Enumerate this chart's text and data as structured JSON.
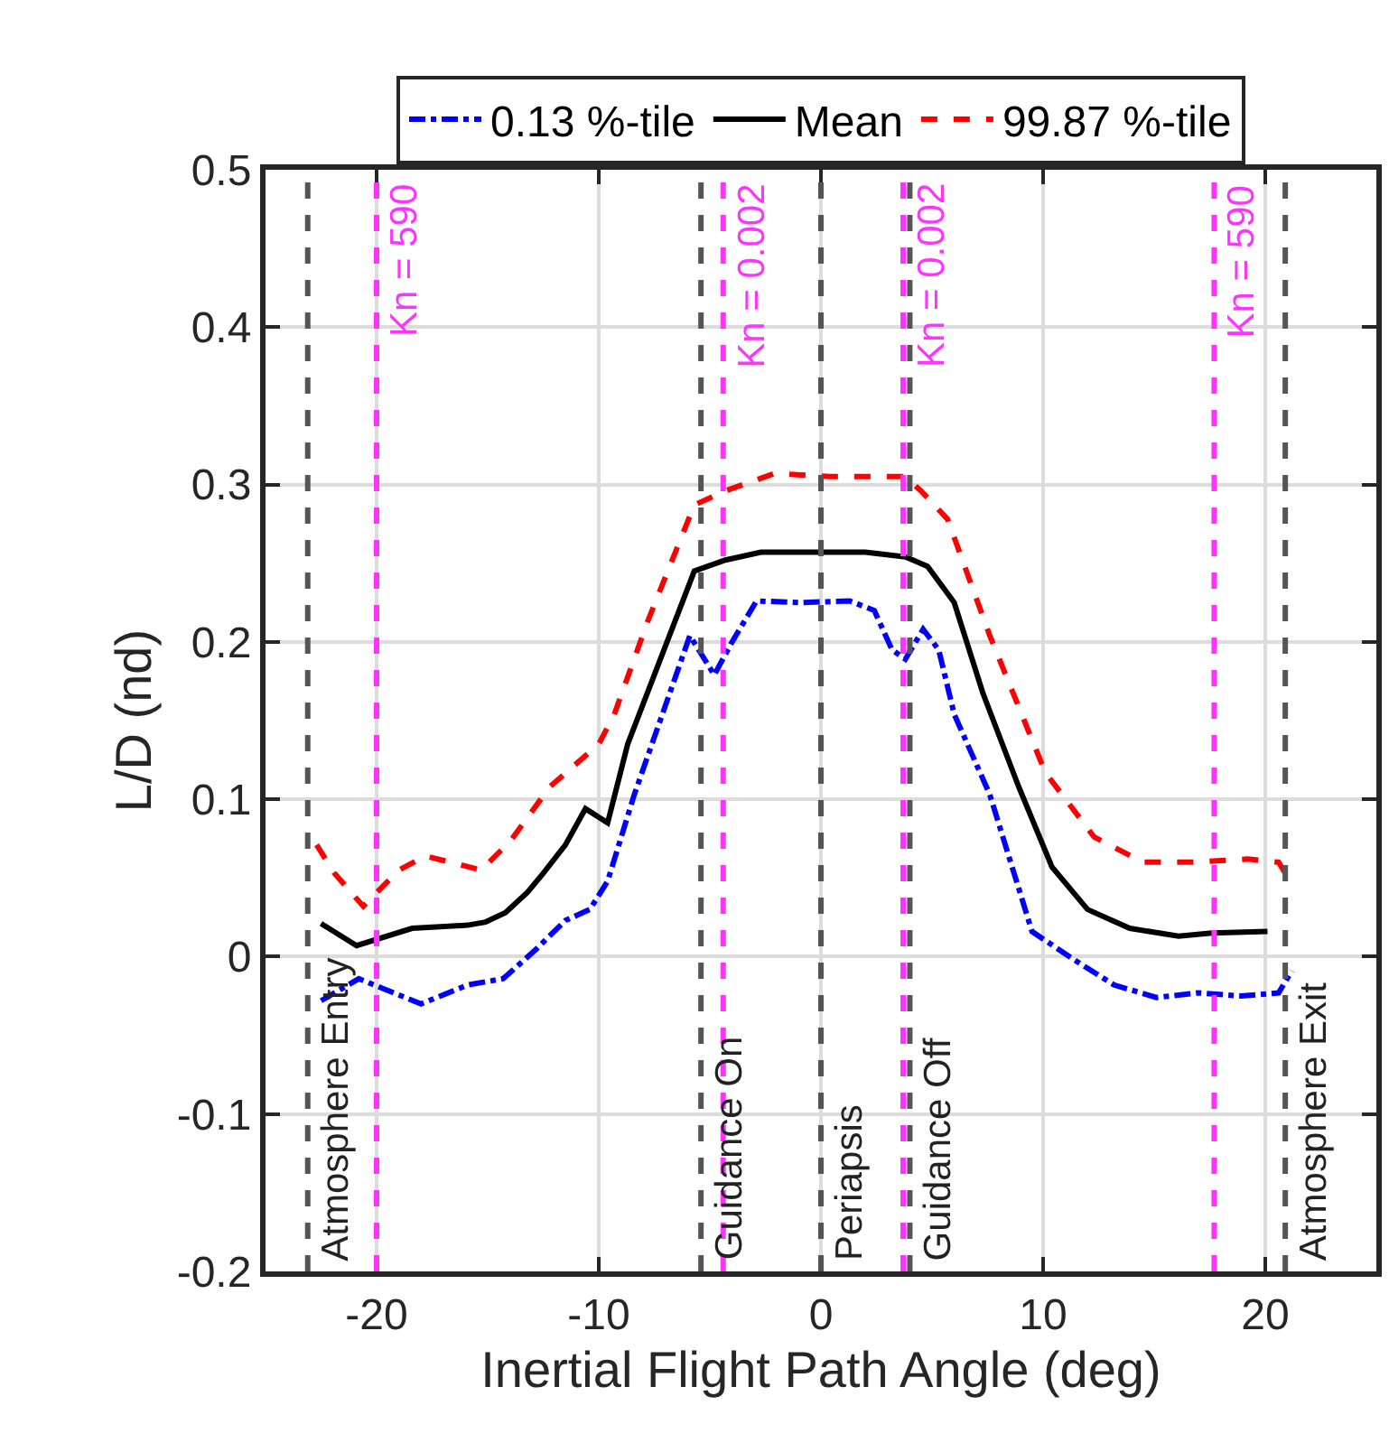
{
  "chart_data": {
    "type": "line",
    "xlabel": "Inertial Flight Path Angle (deg)",
    "ylabel": "L/D (nd)",
    "xlim": [
      -25,
      25
    ],
    "xticks": [
      -20,
      -10,
      0,
      10,
      20
    ],
    "ylim": [
      -0.2,
      0.5
    ],
    "yticks": [
      -0.2,
      -0.1,
      0,
      0.1,
      0.2,
      0.3,
      0.4,
      0.5
    ],
    "grid": true,
    "legend": "top",
    "marker": "none",
    "series": [
      {
        "name": "0.13 %-tile",
        "color": "#0000ff",
        "line_style": "dashdot",
        "x": [
          -22.5,
          -20.8,
          -18.0,
          -15.9,
          -14.3,
          -12.8,
          -11.5,
          -10.4,
          -9.6,
          -8.4,
          -5.9,
          -4.8,
          -4.0,
          -2.9,
          -0.9,
          1.3,
          2.4,
          3.2,
          3.8,
          4.6,
          5.3,
          6.0,
          7.6,
          9.5,
          11.4,
          13.2,
          15.1,
          17.0,
          18.9,
          20.6,
          21.2
        ],
        "values": [
          -0.028,
          -0.014,
          -0.03,
          -0.018,
          -0.014,
          0.005,
          0.023,
          0.03,
          0.048,
          0.103,
          0.204,
          0.179,
          0.2,
          0.226,
          0.225,
          0.226,
          0.22,
          0.195,
          0.189,
          0.208,
          0.195,
          0.154,
          0.103,
          0.016,
          -0.002,
          -0.018,
          -0.026,
          -0.023,
          -0.025,
          -0.023,
          -0.009
        ]
      },
      {
        "name": "Mean",
        "color": "#000000",
        "line_style": "solid",
        "x": [
          -22.5,
          -20.9,
          -18.4,
          -15.9,
          -15.1,
          -14.2,
          -13.2,
          -12.5,
          -11.5,
          -10.6,
          -9.6,
          -8.7,
          -5.7,
          -4.3,
          -2.7,
          2.0,
          3.8,
          4.8,
          6.0,
          7.3,
          8.9,
          10.4,
          12.0,
          13.9,
          16.1,
          17.6,
          20.1
        ],
        "values": [
          0.021,
          0.007,
          0.018,
          0.02,
          0.022,
          0.028,
          0.041,
          0.053,
          0.071,
          0.094,
          0.085,
          0.135,
          0.245,
          0.252,
          0.257,
          0.257,
          0.254,
          0.248,
          0.225,
          0.167,
          0.108,
          0.057,
          0.03,
          0.018,
          0.013,
          0.015,
          0.016
        ]
      },
      {
        "name": "99.87 %-tile",
        "color": "#ff0000",
        "line_style": "dashed",
        "x": [
          -22.7,
          -21.9,
          -20.6,
          -19.0,
          -17.8,
          -15.3,
          -14.0,
          -12.2,
          -10.0,
          -9.3,
          -7.8,
          -5.7,
          -4.3,
          -2.1,
          0.4,
          3.8,
          4.5,
          5.7,
          7.6,
          10.1,
          12.3,
          14.5,
          16.7,
          19.2,
          20.6,
          20.9
        ],
        "values": [
          0.071,
          0.053,
          0.032,
          0.055,
          0.064,
          0.055,
          0.073,
          0.108,
          0.135,
          0.154,
          0.213,
          0.287,
          0.296,
          0.307,
          0.305,
          0.305,
          0.296,
          0.278,
          0.204,
          0.117,
          0.076,
          0.06,
          0.06,
          0.062,
          0.06,
          0.053
        ]
      }
    ],
    "ref_lines": [
      {
        "axis": "x",
        "value": -23.1,
        "label": "Atmosphere Entry",
        "color": "#555555",
        "line_style": "dashed"
      },
      {
        "axis": "x",
        "value": -5.4,
        "label": "Guidance On",
        "color": "#555555",
        "line_style": "dashed"
      },
      {
        "axis": "x",
        "value": 0,
        "label": "Periapsis",
        "color": "#555555",
        "line_style": "dashed"
      },
      {
        "axis": "x",
        "value": 4.0,
        "label": "Guidance Off",
        "color": "#555555",
        "line_style": "dashed"
      },
      {
        "axis": "x",
        "value": 20.9,
        "label": "Atmosphere Exit",
        "color": "#555555",
        "line_style": "dashed"
      },
      {
        "axis": "x",
        "value": -20,
        "color": "#ff33ff",
        "line_style": "dashed"
      },
      {
        "axis": "x",
        "value": -4.4,
        "color": "#ff33ff",
        "line_style": "dashed"
      },
      {
        "axis": "x",
        "value": 3.7,
        "color": "#ff33ff",
        "line_style": "dashed"
      },
      {
        "axis": "x",
        "value": 17.7,
        "color": "#ff33ff",
        "line_style": "dashed"
      }
    ],
    "annotations": [
      {
        "text": "Kn = 590",
        "x": -20,
        "y": 0.5
      },
      {
        "text": "Kn = 0.002",
        "x": -4.4,
        "y": 0.5
      },
      {
        "text": "Kn = 0.002",
        "x": 3.7,
        "y": 0.5
      },
      {
        "text": "Kn = 590",
        "x": 17.7,
        "y": 0.5
      }
    ]
  }
}
